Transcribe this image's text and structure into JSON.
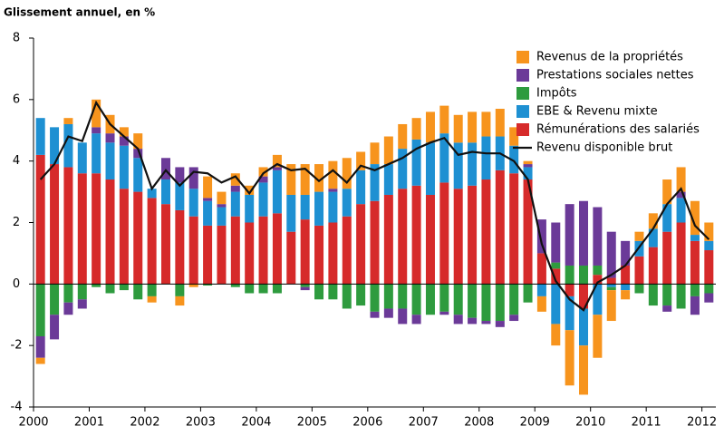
{
  "chart_data": {
    "type": "bar",
    "stacked": true,
    "title": "Glissement annuel, en %",
    "categories": [
      "2000",
      null,
      null,
      null,
      "2001",
      null,
      null,
      null,
      "2002",
      null,
      null,
      null,
      "2003",
      null,
      null,
      null,
      "2004",
      null,
      null,
      null,
      "2005",
      null,
      null,
      null,
      "2006",
      null,
      null,
      null,
      "2007",
      null,
      null,
      null,
      "2008",
      null,
      null,
      null,
      "2009",
      null,
      null,
      null,
      "2010",
      null,
      null,
      null,
      "2011",
      null,
      null,
      null,
      "2012"
    ],
    "ylim": [
      -4,
      8
    ],
    "yticks": [
      -4,
      -2,
      0,
      2,
      4,
      6,
      8
    ],
    "series": [
      {
        "name": "Rémunérations des salariés",
        "color": "#d62a2a",
        "values": [
          4.2,
          3.9,
          3.8,
          3.6,
          3.6,
          3.4,
          3.1,
          3.0,
          2.8,
          2.6,
          2.4,
          2.2,
          1.9,
          1.9,
          2.2,
          2.0,
          2.2,
          2.3,
          1.7,
          2.1,
          1.9,
          2.0,
          2.2,
          2.6,
          2.7,
          2.9,
          3.1,
          3.2,
          2.9,
          3.3,
          3.1,
          3.2,
          3.4,
          3.7,
          3.6,
          3.4,
          1.0,
          0.5,
          -0.4,
          -0.8,
          0.3,
          0.2,
          0.6,
          0.9,
          1.2,
          1.7,
          2.0,
          1.4,
          1.1
        ]
      },
      {
        "name": "EBE & Revenu mixte",
        "color": "#1e90d2",
        "values": [
          1.2,
          1.2,
          1.4,
          1.0,
          1.3,
          1.2,
          1.4,
          1.1,
          0.3,
          0.8,
          0.9,
          0.9,
          0.8,
          0.6,
          0.8,
          0.9,
          1.1,
          1.4,
          1.2,
          0.8,
          1.1,
          1.0,
          0.9,
          1.1,
          1.2,
          1.0,
          1.3,
          1.5,
          1.7,
          1.6,
          1.5,
          1.4,
          1.4,
          1.1,
          0.9,
          0.4,
          -0.4,
          -1.3,
          -1.1,
          -1.2,
          -1.0,
          -0.1,
          -0.2,
          0.5,
          0.6,
          0.9,
          0.8,
          0.2,
          0.3
        ]
      },
      {
        "name": "Impôts",
        "color": "#2e9b3e",
        "values": [
          -1.7,
          -1.0,
          -0.6,
          -0.5,
          -0.1,
          -0.3,
          -0.2,
          -0.5,
          -0.4,
          0.0,
          -0.4,
          0.0,
          -0.05,
          0.0,
          -0.1,
          -0.3,
          -0.3,
          -0.3,
          0.0,
          -0.1,
          -0.5,
          -0.5,
          -0.8,
          -0.7,
          -0.9,
          -0.8,
          -0.8,
          -1.0,
          -1.0,
          -0.9,
          -1.0,
          -1.1,
          -1.2,
          -1.2,
          -1.0,
          -0.6,
          0.0,
          0.2,
          0.6,
          0.6,
          0.3,
          -0.1,
          0.0,
          -0.3,
          -0.7,
          -0.7,
          -0.8,
          -0.4,
          -0.3
        ]
      },
      {
        "name": "Prestations sociales nettes",
        "color": "#6b3a98",
        "values": [
          -0.7,
          -0.8,
          -0.4,
          -0.3,
          0.2,
          0.3,
          0.3,
          0.3,
          0.0,
          0.7,
          0.5,
          0.7,
          0.1,
          0.1,
          0.2,
          0.0,
          0.2,
          0.1,
          0.0,
          -0.1,
          0.0,
          0.1,
          0.0,
          0.0,
          -0.2,
          -0.3,
          -0.5,
          -0.3,
          0.0,
          -0.1,
          -0.3,
          -0.2,
          -0.1,
          -0.2,
          -0.2,
          0.1,
          1.1,
          1.3,
          2.0,
          2.1,
          1.9,
          1.5,
          0.8,
          0.0,
          0.0,
          -0.2,
          0.2,
          -0.6,
          -0.3
        ]
      },
      {
        "name": "Revenus de la propriétés",
        "color": "#f7941d",
        "values": [
          -0.2,
          0.0,
          0.2,
          0.0,
          0.9,
          0.6,
          0.3,
          0.5,
          -0.2,
          0.0,
          -0.3,
          -0.1,
          0.7,
          0.4,
          0.4,
          0.3,
          0.3,
          0.4,
          1.0,
          1.0,
          0.9,
          0.9,
          1.0,
          0.6,
          0.7,
          0.9,
          0.8,
          0.7,
          1.0,
          0.9,
          0.9,
          1.0,
          0.8,
          0.9,
          0.6,
          0.1,
          -0.5,
          -0.7,
          -1.8,
          -1.6,
          -1.4,
          -1.0,
          -0.3,
          0.3,
          0.5,
          0.8,
          0.8,
          1.1,
          0.6
        ]
      },
      {
        "name": "Revenu disponible brut",
        "type": "line",
        "color": "#111111",
        "values": [
          3.4,
          3.9,
          4.8,
          4.65,
          5.9,
          5.2,
          4.8,
          4.4,
          3.1,
          3.7,
          3.2,
          3.65,
          3.6,
          3.3,
          3.5,
          2.95,
          3.6,
          3.9,
          3.7,
          3.75,
          3.35,
          3.7,
          3.3,
          3.85,
          3.7,
          3.9,
          4.1,
          4.4,
          4.6,
          4.75,
          4.2,
          4.3,
          4.25,
          4.25,
          4.0,
          3.4,
          1.3,
          0.1,
          -0.5,
          -0.85,
          0.05,
          0.3,
          0.6,
          1.2,
          1.8,
          2.6,
          3.1,
          1.9,
          1.45
        ]
      }
    ]
  }
}
